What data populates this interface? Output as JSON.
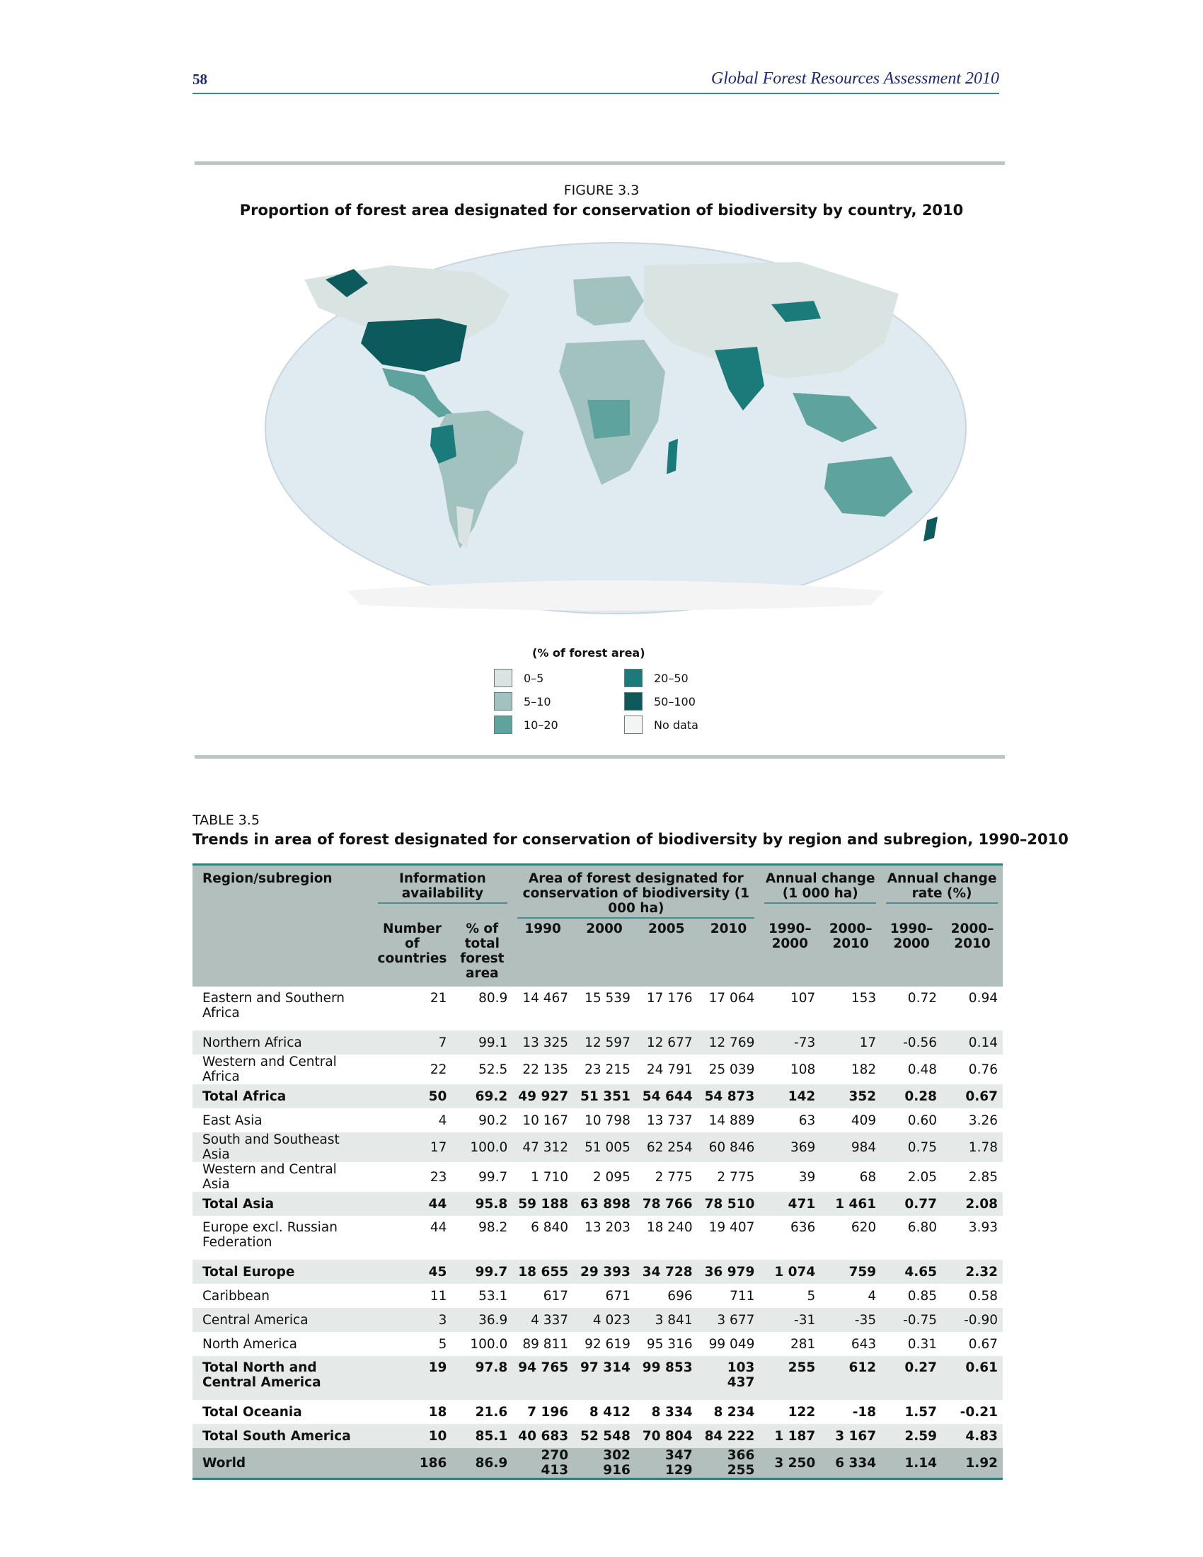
{
  "header": {
    "page_number": "58",
    "publication": "Global Forest Resources Assessment 2010"
  },
  "figure": {
    "label": "FIGURE 3.3",
    "title": "Proportion of forest area designated for conservation of biodiversity by country, 2010",
    "legend_title": "(% of forest area)",
    "legend": [
      {
        "label": "0–5",
        "color": "#d8e3e2"
      },
      {
        "label": "5–10",
        "color": "#a2c2c0"
      },
      {
        "label": "10–20",
        "color": "#5fa39f"
      },
      {
        "label": "20–50",
        "color": "#1b7b7b"
      },
      {
        "label": "50–100",
        "color": "#0c5a5c"
      },
      {
        "label": "No data",
        "color": "#f4f4f4"
      }
    ]
  },
  "table": {
    "label": "TABLE 3.5",
    "title": "Trends in area of forest designated for conservation of biodiversity by region and subregion, 1990–2010",
    "headers": {
      "region": "Region/subregion",
      "info_group": "Information availability",
      "area_group": "Area of forest designated for conservation of biodiversity (1 000 ha)",
      "annual_change_group": "Annual change (1 000 ha)",
      "annual_rate_group": "Annual change rate (%)",
      "num_countries": "Number of countries",
      "pct_total": "% of total forest area",
      "y1990": "1990",
      "y2000": "2000",
      "y2005": "2005",
      "y2010": "2010",
      "ch_1990_2000": "1990–2000",
      "ch_2000_2010": "2000–2010",
      "rate_1990_2000": "1990–2000",
      "rate_2000_2010": "2000–2010"
    },
    "rows": [
      {
        "region": "Eastern and Southern Africa",
        "n": "21",
        "pct": "80.9",
        "a1990": "14 467",
        "a2000": "15 539",
        "a2005": "17 176",
        "a2010": "17 064",
        "c1": "107",
        "c2": "153",
        "r1": "0.72",
        "r2": "0.94",
        "type": "tall"
      },
      {
        "region": "Northern Africa",
        "n": "7",
        "pct": "99.1",
        "a1990": "13 325",
        "a2000": "12 597",
        "a2005": "12 677",
        "a2010": "12 769",
        "c1": "-73",
        "c2": "17",
        "r1": "-0.56",
        "r2": "0.14",
        "type": "normal"
      },
      {
        "region": "Western and Central Africa",
        "n": "22",
        "pct": "52.5",
        "a1990": "22 135",
        "a2000": "23 215",
        "a2005": "24 791",
        "a2010": "25 039",
        "c1": "108",
        "c2": "182",
        "r1": "0.48",
        "r2": "0.76",
        "type": "normal"
      },
      {
        "region": "Total Africa",
        "n": "50",
        "pct": "69.2",
        "a1990": "49 927",
        "a2000": "51 351",
        "a2005": "54 644",
        "a2010": "54 873",
        "c1": "142",
        "c2": "352",
        "r1": "0.28",
        "r2": "0.67",
        "type": "total"
      },
      {
        "region": "East Asia",
        "n": "4",
        "pct": "90.2",
        "a1990": "10 167",
        "a2000": "10 798",
        "a2005": "13 737",
        "a2010": "14 889",
        "c1": "63",
        "c2": "409",
        "r1": "0.60",
        "r2": "3.26",
        "type": "normal"
      },
      {
        "region": "South and Southeast Asia",
        "n": "17",
        "pct": "100.0",
        "a1990": "47 312",
        "a2000": "51 005",
        "a2005": "62 254",
        "a2010": "60 846",
        "c1": "369",
        "c2": "984",
        "r1": "0.75",
        "r2": "1.78",
        "type": "normal"
      },
      {
        "region": "Western and Central Asia",
        "n": "23",
        "pct": "99.7",
        "a1990": "1 710",
        "a2000": "2 095",
        "a2005": "2 775",
        "a2010": "2 775",
        "c1": "39",
        "c2": "68",
        "r1": "2.05",
        "r2": "2.85",
        "type": "normal"
      },
      {
        "region": "Total Asia",
        "n": "44",
        "pct": "95.8",
        "a1990": "59 188",
        "a2000": "63 898",
        "a2005": "78 766",
        "a2010": "78 510",
        "c1": "471",
        "c2": "1 461",
        "r1": "0.77",
        "r2": "2.08",
        "type": "total"
      },
      {
        "region": "Europe excl. Russian Federation",
        "n": "44",
        "pct": "98.2",
        "a1990": "6 840",
        "a2000": "13 203",
        "a2005": "18 240",
        "a2010": "19 407",
        "c1": "636",
        "c2": "620",
        "r1": "6.80",
        "r2": "3.93",
        "type": "tall"
      },
      {
        "region": "Total Europe",
        "n": "45",
        "pct": "99.7",
        "a1990": "18 655",
        "a2000": "29 393",
        "a2005": "34 728",
        "a2010": "36 979",
        "c1": "1 074",
        "c2": "759",
        "r1": "4.65",
        "r2": "2.32",
        "type": "total"
      },
      {
        "region": "Caribbean",
        "n": "11",
        "pct": "53.1",
        "a1990": "617",
        "a2000": "671",
        "a2005": "696",
        "a2010": "711",
        "c1": "5",
        "c2": "4",
        "r1": "0.85",
        "r2": "0.58",
        "type": "normal"
      },
      {
        "region": "Central America",
        "n": "3",
        "pct": "36.9",
        "a1990": "4 337",
        "a2000": "4 023",
        "a2005": "3 841",
        "a2010": "3 677",
        "c1": "-31",
        "c2": "-35",
        "r1": "-0.75",
        "r2": "-0.90",
        "type": "normal"
      },
      {
        "region": "North America",
        "n": "5",
        "pct": "100.0",
        "a1990": "89 811",
        "a2000": "92 619",
        "a2005": "95 316",
        "a2010": "99 049",
        "c1": "281",
        "c2": "643",
        "r1": "0.31",
        "r2": "0.67",
        "type": "normal"
      },
      {
        "region": "Total North and Central America",
        "n": "19",
        "pct": "97.8",
        "a1990": "94 765",
        "a2000": "97 314",
        "a2005": "99 853",
        "a2010": "103 437",
        "c1": "255",
        "c2": "612",
        "r1": "0.27",
        "r2": "0.61",
        "type": "total tall"
      },
      {
        "region": "Total Oceania",
        "n": "18",
        "pct": "21.6",
        "a1990": "7 196",
        "a2000": "8 412",
        "a2005": "8 334",
        "a2010": "8 234",
        "c1": "122",
        "c2": "-18",
        "r1": "1.57",
        "r2": "-0.21",
        "type": "total"
      },
      {
        "region": "Total South America",
        "n": "10",
        "pct": "85.1",
        "a1990": "40 683",
        "a2000": "52 548",
        "a2005": "70 804",
        "a2010": "84 222",
        "c1": "1 187",
        "c2": "3 167",
        "r1": "2.59",
        "r2": "4.83",
        "type": "total"
      },
      {
        "region": "World",
        "n": "186",
        "pct": "86.9",
        "a1990": "270 413",
        "a2000": "302 916",
        "a2005": "347 129",
        "a2010": "366 255",
        "c1": "3 250",
        "c2": "6 334",
        "r1": "1.14",
        "r2": "1.92",
        "type": "world"
      }
    ]
  }
}
